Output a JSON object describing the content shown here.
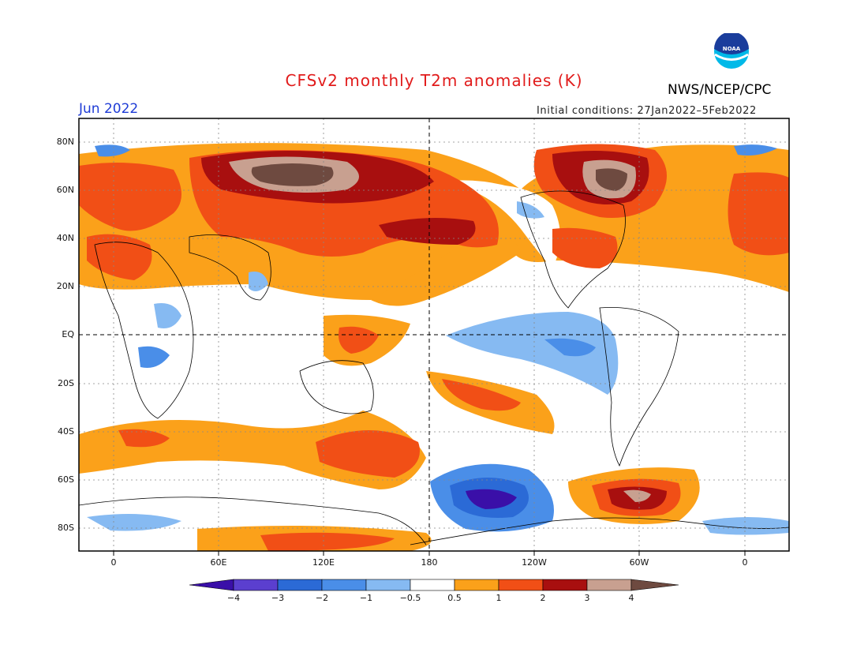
{
  "title": "CFSv2 monthly T2m anomalies (K)",
  "agency": "NWS/NCEP/CPC",
  "logo_text": "NOAA",
  "month": "Jun 2022",
  "initial_conditions": "Initial conditions: 27Jan2022–5Feb2022",
  "lat_labels": [
    "80N",
    "60N",
    "40N",
    "20N",
    "EQ",
    "20S",
    "40S",
    "60S",
    "80S"
  ],
  "lon_labels": [
    "0",
    "60E",
    "120E",
    "180",
    "120W",
    "60W",
    "0"
  ],
  "colorbar": {
    "labels": [
      "−4",
      "−3",
      "−2",
      "−1",
      "−0.5",
      "0.5",
      "1",
      "2",
      "3",
      "4"
    ],
    "colors": [
      "#3a0fa8",
      "#5b3fcf",
      "#2b6ad6",
      "#4a8ee8",
      "#86baf2",
      "#ffffff",
      "#fba11a",
      "#f14f16",
      "#a80f0f",
      "#c8a090",
      "#6e4a40"
    ]
  },
  "colors": {
    "warm1": "#fba11a",
    "warm2": "#f14f16",
    "warm3": "#a80f0f",
    "warm4": "#c8a090",
    "warm5": "#6e4a40",
    "cool1": "#86baf2",
    "cool2": "#4a8ee8",
    "cool3": "#2b6ad6",
    "cool4": "#3a0fa8"
  }
}
